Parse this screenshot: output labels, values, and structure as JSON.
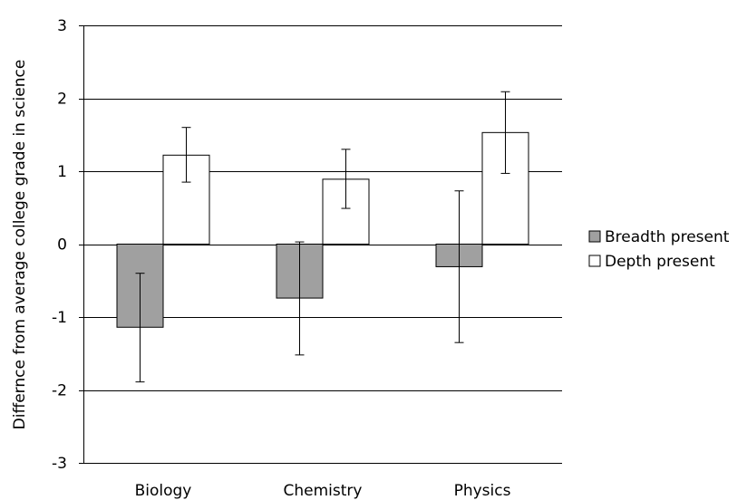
{
  "chart_data": {
    "type": "bar",
    "title": "",
    "xlabel": "",
    "ylabel": "Differnce from average college grade in science",
    "ylim": [
      -3,
      3
    ],
    "yticks": [
      -3,
      -2,
      -1,
      0,
      1,
      2,
      3
    ],
    "grid": true,
    "legend_position": "right",
    "categories": [
      "Biology",
      "Chemistry",
      "Physics"
    ],
    "series": [
      {
        "name": "Breadth present",
        "color": "#a0a0a0",
        "values": [
          -1.14,
          -0.74,
          -0.31
        ],
        "error_low": [
          -1.89,
          -1.52,
          -1.35
        ],
        "error_high": [
          -0.4,
          0.03,
          0.73
        ]
      },
      {
        "name": "Depth present",
        "color": "#ffffff",
        "values": [
          1.22,
          0.89,
          1.53
        ],
        "error_low": [
          0.85,
          0.49,
          0.97
        ],
        "error_high": [
          1.6,
          1.3,
          2.09
        ]
      }
    ]
  }
}
